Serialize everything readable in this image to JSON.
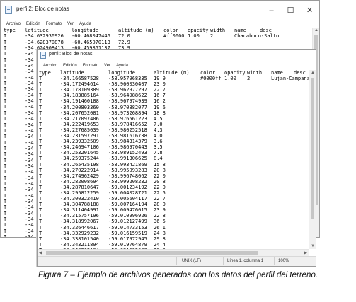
{
  "back_window": {
    "title": "perfil2: Bloc de notas",
    "menu": [
      "Archivo",
      "Edición",
      "Formato",
      "Ver",
      "Ayuda"
    ],
    "controls": [
      "–",
      "☐",
      "✕"
    ],
    "header": [
      "type",
      "latitude",
      "longitude",
      "altitude (m)",
      "color",
      "opacity",
      "width",
      "name",
      "desc"
    ],
    "rows": [
      [
        "T",
        "-34.632936926",
        "-60.468047446",
        "72.0",
        "#ff0000",
        "1.00",
        "2",
        "Chacabuco-Salto",
        ""
      ],
      [
        "T",
        "-34.628370878",
        "-60.465070113",
        "72.9",
        "",
        "",
        "",
        "",
        ""
      ],
      [
        "T",
        "-34.624908413",
        "-60.459851137",
        "73.9",
        "",
        "",
        "",
        "",
        ""
      ],
      [
        "T",
        "-34",
        "",
        "",
        "",
        "",
        "",
        "",
        ""
      ],
      [
        "T",
        "-34",
        "",
        "",
        "",
        "",
        "",
        "",
        ""
      ],
      [
        "T",
        "-34",
        "",
        "",
        "",
        "",
        "",
        "",
        ""
      ],
      [
        "T",
        "-34",
        "",
        "",
        "",
        "",
        "",
        "",
        ""
      ],
      [
        "T",
        "-34",
        "",
        "",
        "",
        "",
        "",
        "",
        ""
      ],
      [
        "T",
        "-34",
        "",
        "",
        "",
        "",
        "",
        "",
        ""
      ],
      [
        "T",
        "-34",
        "",
        "",
        "",
        "",
        "",
        "",
        ""
      ],
      [
        "T",
        "-34",
        "",
        "",
        "",
        "",
        "",
        "",
        ""
      ],
      [
        "T",
        "-34",
        "",
        "",
        "",
        "",
        "",
        "",
        ""
      ],
      [
        "T",
        "-34",
        "",
        "",
        "",
        "",
        "",
        "",
        ""
      ],
      [
        "T",
        "-34",
        "",
        "",
        "",
        "",
        "",
        "",
        ""
      ],
      [
        "T",
        "-34",
        "",
        "",
        "",
        "",
        "",
        "",
        ""
      ],
      [
        "T",
        "-34",
        "",
        "",
        "",
        "",
        "",
        "",
        ""
      ],
      [
        "T",
        "-34",
        "",
        "",
        "",
        "",
        "",
        "",
        ""
      ],
      [
        "T",
        "-34",
        "",
        "",
        "",
        "",
        "",
        "",
        ""
      ],
      [
        "T",
        "-34",
        "",
        "",
        "",
        "",
        "",
        "",
        ""
      ],
      [
        "T",
        "-34",
        "",
        "",
        "",
        "",
        "",
        "",
        ""
      ],
      [
        "T",
        "-34",
        "",
        "",
        "",
        "",
        "",
        "",
        ""
      ],
      [
        "T",
        "-34",
        "",
        "",
        "",
        "",
        "",
        "",
        ""
      ],
      [
        "T",
        "-34",
        "",
        "",
        "",
        "",
        "",
        "",
        ""
      ],
      [
        "T",
        "-34",
        "",
        "",
        "",
        "",
        "",
        "",
        ""
      ],
      [
        "T",
        "-34",
        "",
        "",
        "",
        "",
        "",
        "",
        ""
      ],
      [
        "T",
        "-34",
        "",
        "",
        "",
        "",
        "",
        "",
        ""
      ],
      [
        "T",
        "-34",
        "",
        "",
        "",
        "",
        "",
        "",
        ""
      ],
      [
        "T",
        "-34",
        "",
        "",
        "",
        "",
        "",
        "",
        ""
      ],
      [
        "T",
        "-34",
        "",
        "",
        "",
        "",
        "",
        "",
        ""
      ],
      [
        "T",
        "-34",
        "",
        "",
        "",
        "",
        "",
        "",
        ""
      ],
      [
        "T",
        "-34",
        "",
        "",
        "",
        "",
        "",
        "",
        ""
      ],
      [
        "T",
        "-34",
        "",
        "",
        "",
        "",
        "",
        "",
        ""
      ],
      [
        "T",
        "-34",
        "",
        "",
        "",
        "",
        "",
        "",
        ""
      ],
      [
        "T",
        "-34",
        "",
        "",
        "",
        "",
        "",
        "",
        ""
      ],
      [
        "T",
        "-34",
        "",
        "",
        "",
        "",
        "",
        "",
        ""
      ]
    ]
  },
  "front_window": {
    "title": "perfil: Bloc de notas",
    "menu": [
      "Archivo",
      "Edición",
      "Formato",
      "Ver",
      "Ayuda"
    ],
    "header": [
      "type",
      "latitude",
      "longitude",
      "altitude (m)",
      "color",
      "opacity",
      "width",
      "name",
      "desc"
    ],
    "rows": [
      [
        "T",
        "-34.166587528",
        "-58.957968335",
        "19.9",
        "#0000ff",
        "1.00",
        "2",
        "Lujan-Campana",
        ""
      ],
      [
        "T",
        "-34.172494614",
        "-58.960030407",
        "23.0",
        "",
        "",
        "",
        "",
        ""
      ],
      [
        "T",
        "-34.178109389",
        "-58.962977297",
        "22.7",
        "",
        "",
        "",
        "",
        ""
      ],
      [
        "T",
        "-34.183885164",
        "-58.964988622",
        "16.7",
        "",
        "",
        "",
        "",
        ""
      ],
      [
        "T",
        "-34.191460188",
        "-58.967974939",
        "16.2",
        "",
        "",
        "",
        "",
        ""
      ],
      [
        "T",
        "-34.200803360",
        "-58.970882077",
        "19.6",
        "",
        "",
        "",
        "",
        ""
      ],
      [
        "T",
        "-34.207652081",
        "-58.973268894",
        "18.8",
        "",
        "",
        "",
        "",
        ""
      ],
      [
        "T",
        "-34.217097406",
        "-58.976561223",
        "4.5",
        "",
        "",
        "",
        "",
        ""
      ],
      [
        "T",
        "-34.222419653",
        "-58.978416652",
        "7.0",
        "",
        "",
        "",
        "",
        ""
      ],
      [
        "T",
        "-34.227685039",
        "-58.980252518",
        "4.3",
        "",
        "",
        "",
        "",
        ""
      ],
      [
        "T",
        "-34.231597291",
        "-58.981616738",
        "4.0",
        "",
        "",
        "",
        "",
        ""
      ],
      [
        "T",
        "-34.239332509",
        "-58.984314379",
        "3.6",
        "",
        "",
        "",
        "",
        ""
      ],
      [
        "T",
        "-34.246947106",
        "-58.986970443",
        "3.5",
        "",
        "",
        "",
        "",
        ""
      ],
      [
        "T",
        "-34.253201645",
        "-58.989152493",
        "7.8",
        "",
        "",
        "",
        "",
        ""
      ],
      [
        "T",
        "-34.259375244",
        "-58.991306625",
        "8.4",
        "",
        "",
        "",
        "",
        ""
      ],
      [
        "T",
        "-34.265435198",
        "-58.993421869",
        "15.8",
        "",
        "",
        "",
        "",
        ""
      ],
      [
        "T",
        "-34.270222914",
        "-58.995093283",
        "20.8",
        "",
        "",
        "",
        "",
        ""
      ],
      [
        "T",
        "-34.274962429",
        "-58.996748062",
        "22.0",
        "",
        "",
        "",
        "",
        ""
      ],
      [
        "T",
        "-34.282008694",
        "-58.999208232",
        "20.8",
        "",
        "",
        "",
        "",
        ""
      ],
      [
        "T",
        "-34.287810647",
        "-59.001234192",
        "22.0",
        "",
        "",
        "",
        "",
        ""
      ],
      [
        "T",
        "-34.295812259",
        "-59.004028721",
        "22.5",
        "",
        "",
        "",
        "",
        ""
      ],
      [
        "T",
        "-34.300322410",
        "-59.005604117",
        "22.7",
        "",
        "",
        "",
        "",
        ""
      ],
      [
        "T",
        "-34.304788188",
        "-59.007164194",
        "28.0",
        "",
        "",
        "",
        "",
        ""
      ],
      [
        "T",
        "-34.311404991",
        "-59.009476015",
        "23.9",
        "",
        "",
        "",
        "",
        ""
      ],
      [
        "T",
        "-34.315757196",
        "-59.010996926",
        "22.8",
        "",
        "",
        "",
        "",
        ""
      ],
      [
        "T",
        "-34.318992067",
        "-59.012127499",
        "36.5",
        "",
        "",
        "",
        "",
        ""
      ],
      [
        "T",
        "-34.326446617",
        "-59.014733153",
        "26.1",
        "",
        "",
        "",
        "",
        ""
      ],
      [
        "T",
        "-34.332929232",
        "-59.016159519",
        "24.8",
        "",
        "",
        "",
        "",
        ""
      ],
      [
        "T",
        "-34.338101540",
        "-59.017972945",
        "29.8",
        "",
        "",
        "",
        "",
        ""
      ],
      [
        "T",
        "-34.343211894",
        "-59.019764879",
        "24.4",
        "",
        "",
        "",
        "",
        ""
      ],
      [
        "T",
        "-34.348262104",
        "-59.021535088",
        "29.0",
        "",
        "",
        "",
        "",
        ""
      ]
    ],
    "status": {
      "encoding": "UNIX (LF)",
      "position": "Línea 1, columna 1",
      "zoom": "100%"
    }
  },
  "caption": "Figura 7 – Ejemplo de archivos generados con los datos del perfil del terreno."
}
